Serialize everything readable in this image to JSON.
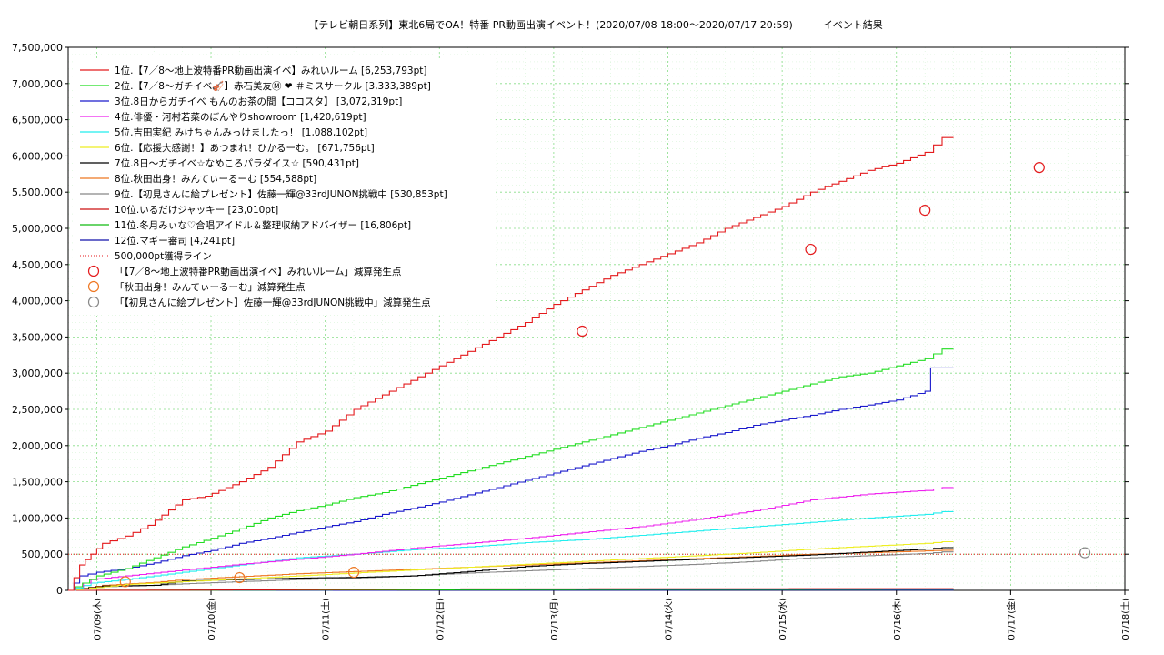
{
  "chart_data": {
    "type": "line",
    "title": "【テレビ朝日系列】東北6局でOA！特番 PR動画出演イベント！(2020/07/08 18:00〜2020/07/17 20:59)　　　イベント結果",
    "xlabel": "",
    "ylabel": "",
    "ylim": [
      0,
      7500000
    ],
    "yticks": [
      "0",
      "500,000",
      "1,000,000",
      "1,500,000",
      "2,000,000",
      "2,500,000",
      "3,000,000",
      "3,500,000",
      "4,000,000",
      "4,500,000",
      "5,000,000",
      "5,500,000",
      "6,000,000",
      "6,500,000",
      "7,000,000",
      "7,500,000"
    ],
    "x_start": "2020/07/08 18:00",
    "xticks": [
      "07/09(木)",
      "07/10(金)",
      "07/11(土)",
      "07/12(日)",
      "07/13(月)",
      "07/14(火)",
      "07/15(水)",
      "07/16(木)",
      "07/17(金)",
      "07/18(土)"
    ],
    "grid": true,
    "legend_position": "top-left",
    "series": [
      {
        "name": "1位.【7／8〜地上波特番PR動画出演イベ】みれいルーム [6,253,793pt]",
        "color": "#e41a1c",
        "points": [
          [
            0,
            0
          ],
          [
            0.1,
            350000
          ],
          [
            0.2,
            500000
          ],
          [
            0.3,
            650000
          ],
          [
            0.5,
            750000
          ],
          [
            0.7,
            900000
          ],
          [
            1.0,
            1250000
          ],
          [
            1.2,
            1300000
          ],
          [
            1.5,
            1500000
          ],
          [
            1.75,
            1700000
          ],
          [
            2.0,
            2050000
          ],
          [
            2.25,
            2200000
          ],
          [
            2.5,
            2500000
          ],
          [
            2.75,
            2700000
          ],
          [
            3.0,
            2900000
          ],
          [
            3.25,
            3100000
          ],
          [
            3.5,
            3300000
          ],
          [
            3.75,
            3500000
          ],
          [
            4.0,
            3700000
          ],
          [
            4.25,
            3950000
          ],
          [
            4.5,
            4150000
          ],
          [
            4.75,
            4350000
          ],
          [
            5.0,
            4500000
          ],
          [
            5.25,
            4650000
          ],
          [
            5.5,
            4800000
          ],
          [
            5.75,
            5000000
          ],
          [
            6.0,
            5150000
          ],
          [
            6.25,
            5300000
          ],
          [
            6.5,
            5500000
          ],
          [
            6.75,
            5650000
          ],
          [
            7.0,
            5800000
          ],
          [
            7.25,
            5900000
          ],
          [
            7.5,
            6050000
          ],
          [
            7.65,
            6253793
          ],
          [
            7.75,
            6253793
          ]
        ]
      },
      {
        "name": "2位.【7／8〜ガチイベ🎻】赤石美友Ⓜ ❤ ＃ミスサークル [3,333,389pt]",
        "color": "#22dd22",
        "points": [
          [
            0,
            0
          ],
          [
            0.25,
            200000
          ],
          [
            0.5,
            300000
          ],
          [
            0.75,
            450000
          ],
          [
            1.0,
            600000
          ],
          [
            1.25,
            720000
          ],
          [
            1.5,
            850000
          ],
          [
            1.75,
            1000000
          ],
          [
            2.0,
            1100000
          ],
          [
            2.25,
            1180000
          ],
          [
            2.5,
            1280000
          ],
          [
            2.75,
            1350000
          ],
          [
            3.0,
            1450000
          ],
          [
            3.25,
            1550000
          ],
          [
            3.5,
            1650000
          ],
          [
            3.75,
            1750000
          ],
          [
            4.0,
            1850000
          ],
          [
            4.25,
            1950000
          ],
          [
            4.5,
            2050000
          ],
          [
            4.75,
            2150000
          ],
          [
            5.0,
            2250000
          ],
          [
            5.25,
            2350000
          ],
          [
            5.5,
            2450000
          ],
          [
            5.75,
            2550000
          ],
          [
            6.0,
            2650000
          ],
          [
            6.25,
            2750000
          ],
          [
            6.5,
            2850000
          ],
          [
            6.75,
            2950000
          ],
          [
            7.0,
            3000000
          ],
          [
            7.25,
            3100000
          ],
          [
            7.5,
            3200000
          ],
          [
            7.65,
            3333389
          ],
          [
            7.75,
            3333389
          ]
        ]
      },
      {
        "name": "3位.8日からガチイベ もんのお茶の間【ココスタ】 [3,072,319pt]",
        "color": "#1a1acc",
        "points": [
          [
            0,
            0
          ],
          [
            0.1,
            200000
          ],
          [
            0.25,
            250000
          ],
          [
            0.5,
            300000
          ],
          [
            0.75,
            380000
          ],
          [
            1.0,
            480000
          ],
          [
            1.25,
            550000
          ],
          [
            1.5,
            650000
          ],
          [
            1.75,
            720000
          ],
          [
            2.0,
            800000
          ],
          [
            2.25,
            880000
          ],
          [
            2.5,
            950000
          ],
          [
            2.75,
            1050000
          ],
          [
            3.0,
            1130000
          ],
          [
            3.25,
            1220000
          ],
          [
            3.5,
            1320000
          ],
          [
            3.75,
            1420000
          ],
          [
            4.0,
            1520000
          ],
          [
            4.25,
            1620000
          ],
          [
            4.5,
            1720000
          ],
          [
            4.75,
            1820000
          ],
          [
            5.0,
            1920000
          ],
          [
            5.25,
            2000000
          ],
          [
            5.5,
            2100000
          ],
          [
            5.75,
            2180000
          ],
          [
            6.0,
            2280000
          ],
          [
            6.25,
            2350000
          ],
          [
            6.5,
            2420000
          ],
          [
            6.75,
            2500000
          ],
          [
            7.0,
            2560000
          ],
          [
            7.25,
            2630000
          ],
          [
            7.5,
            2750000
          ],
          [
            7.55,
            3072319
          ],
          [
            7.75,
            3072319
          ]
        ]
      },
      {
        "name": "4位.俳優・河村若菜のぼんやりshowroom [1,420,619pt]",
        "color": "#ee22ee",
        "points": [
          [
            0,
            0
          ],
          [
            0.2,
            150000
          ],
          [
            0.5,
            200000
          ],
          [
            1.0,
            280000
          ],
          [
            1.5,
            360000
          ],
          [
            2.0,
            430000
          ],
          [
            2.5,
            500000
          ],
          [
            3.0,
            580000
          ],
          [
            3.5,
            650000
          ],
          [
            4.0,
            720000
          ],
          [
            4.5,
            800000
          ],
          [
            5.0,
            880000
          ],
          [
            5.5,
            980000
          ],
          [
            6.0,
            1100000
          ],
          [
            6.5,
            1250000
          ],
          [
            7.0,
            1330000
          ],
          [
            7.5,
            1380000
          ],
          [
            7.65,
            1420619
          ],
          [
            7.75,
            1420619
          ]
        ]
      },
      {
        "name": "5位.吉田実紀 みけちゃんみっけましたっ！ [1,088,102pt]",
        "color": "#22eeee",
        "points": [
          [
            0,
            0
          ],
          [
            0.2,
            100000
          ],
          [
            0.5,
            150000
          ],
          [
            1.0,
            250000
          ],
          [
            1.5,
            350000
          ],
          [
            2.0,
            450000
          ],
          [
            2.5,
            500000
          ],
          [
            3.0,
            560000
          ],
          [
            3.5,
            600000
          ],
          [
            4.0,
            660000
          ],
          [
            4.5,
            700000
          ],
          [
            5.0,
            760000
          ],
          [
            5.5,
            820000
          ],
          [
            6.0,
            880000
          ],
          [
            6.5,
            940000
          ],
          [
            7.0,
            1000000
          ],
          [
            7.5,
            1050000
          ],
          [
            7.65,
            1088102
          ],
          [
            7.75,
            1088102
          ]
        ]
      },
      {
        "name": "6位.【応援大感謝！】あつまれ！ひかるーむ。 [671,756pt]",
        "color": "#eeee22",
        "points": [
          [
            0,
            0
          ],
          [
            0.5,
            80000
          ],
          [
            1.0,
            120000
          ],
          [
            1.5,
            160000
          ],
          [
            2.0,
            200000
          ],
          [
            2.5,
            240000
          ],
          [
            3.0,
            280000
          ],
          [
            3.5,
            320000
          ],
          [
            4.0,
            360000
          ],
          [
            4.5,
            400000
          ],
          [
            5.0,
            440000
          ],
          [
            5.5,
            480000
          ],
          [
            6.0,
            520000
          ],
          [
            6.5,
            570000
          ],
          [
            7.0,
            610000
          ],
          [
            7.5,
            650000
          ],
          [
            7.65,
            671756
          ],
          [
            7.75,
            671756
          ]
        ]
      },
      {
        "name": "7位.8日〜ガチイベ☆なめころパラダイス☆ [590,431pt]",
        "color": "#000000",
        "points": [
          [
            0,
            0
          ],
          [
            0.3,
            60000
          ],
          [
            0.75,
            70000
          ],
          [
            1.0,
            130000
          ],
          [
            1.5,
            150000
          ],
          [
            2.0,
            170000
          ],
          [
            2.5,
            180000
          ],
          [
            3.0,
            200000
          ],
          [
            3.5,
            260000
          ],
          [
            4.0,
            330000
          ],
          [
            4.5,
            370000
          ],
          [
            5.0,
            400000
          ],
          [
            5.5,
            430000
          ],
          [
            6.0,
            460000
          ],
          [
            6.5,
            490000
          ],
          [
            7.0,
            530000
          ],
          [
            7.5,
            570000
          ],
          [
            7.65,
            590431
          ],
          [
            7.75,
            590431
          ]
        ]
      },
      {
        "name": "8位.秋田出身！みんてぃーるーむ [554,588pt]",
        "color": "#ee7722",
        "points": [
          [
            0,
            0
          ],
          [
            0.3,
            70000
          ],
          [
            0.75,
            110000
          ],
          [
            1.0,
            150000
          ],
          [
            1.5,
            190000
          ],
          [
            2.0,
            230000
          ],
          [
            2.5,
            260000
          ],
          [
            3.0,
            290000
          ],
          [
            3.5,
            320000
          ],
          [
            4.0,
            350000
          ],
          [
            4.5,
            380000
          ],
          [
            5.0,
            410000
          ],
          [
            5.5,
            440000
          ],
          [
            6.0,
            470000
          ],
          [
            6.5,
            500000
          ],
          [
            7.0,
            520000
          ],
          [
            7.5,
            545000
          ],
          [
            7.65,
            554588
          ],
          [
            7.75,
            554588
          ]
        ]
      },
      {
        "name": "9位.【初見さんに絵プレゼント】佐藤一輝@33rdJUNON挑戦中 [530,853pt]",
        "color": "#888888",
        "points": [
          [
            0,
            0
          ],
          [
            0.3,
            50000
          ],
          [
            0.75,
            70000
          ],
          [
            1.0,
            90000
          ],
          [
            1.5,
            120000
          ],
          [
            2.0,
            150000
          ],
          [
            2.5,
            170000
          ],
          [
            3.0,
            200000
          ],
          [
            3.5,
            240000
          ],
          [
            4.0,
            270000
          ],
          [
            4.5,
            300000
          ],
          [
            5.0,
            330000
          ],
          [
            5.5,
            360000
          ],
          [
            6.0,
            400000
          ],
          [
            6.5,
            450000
          ],
          [
            7.0,
            480000
          ],
          [
            7.5,
            510000
          ],
          [
            7.65,
            530853
          ],
          [
            7.75,
            530853
          ]
        ]
      },
      {
        "name": "10位.いるだけジャッキー [23,010pt]",
        "color": "#cc1111",
        "points": [
          [
            0,
            0
          ],
          [
            1.0,
            3000
          ],
          [
            3.5,
            20000
          ],
          [
            7.75,
            23010
          ]
        ]
      },
      {
        "name": "11位.冬月みぃな♡合唱アイドル＆整理収納アドバイザー [16,806pt]",
        "color": "#11bb11",
        "points": [
          [
            0,
            0
          ],
          [
            2.0,
            5000
          ],
          [
            5.0,
            12000
          ],
          [
            7.75,
            16806
          ]
        ]
      },
      {
        "name": "12位.マギー審司 [4,241pt]",
        "color": "#1111aa",
        "points": [
          [
            0,
            0
          ],
          [
            3.0,
            2000
          ],
          [
            7.75,
            4241
          ]
        ]
      }
    ],
    "reference_line": {
      "name": "500,000pt獲得ライン",
      "value": 500000,
      "color": "#e41a1c"
    },
    "markers": [
      {
        "name": "「【7／8〜地上波特番PR動画出演イベ】みれいルーム」減算発生点",
        "color": "#e41a1c",
        "points": [
          [
            4.5,
            3580000
          ],
          [
            6.5,
            4710000
          ],
          [
            7.5,
            5250000
          ],
          [
            8.5,
            5840000
          ]
        ]
      },
      {
        "name": "「秋田出身！みんてぃーるーむ」減算発生点",
        "color": "#ee7722",
        "points": [
          [
            0.5,
            120000
          ],
          [
            1.5,
            175000
          ],
          [
            2.5,
            250000
          ]
        ]
      },
      {
        "name": "「【初見さんに絵プレゼント】佐藤一輝@33rdJUNON挑戦中」減算発生点",
        "color": "#888888",
        "points": [
          [
            8.9,
            520000
          ]
        ]
      }
    ]
  }
}
